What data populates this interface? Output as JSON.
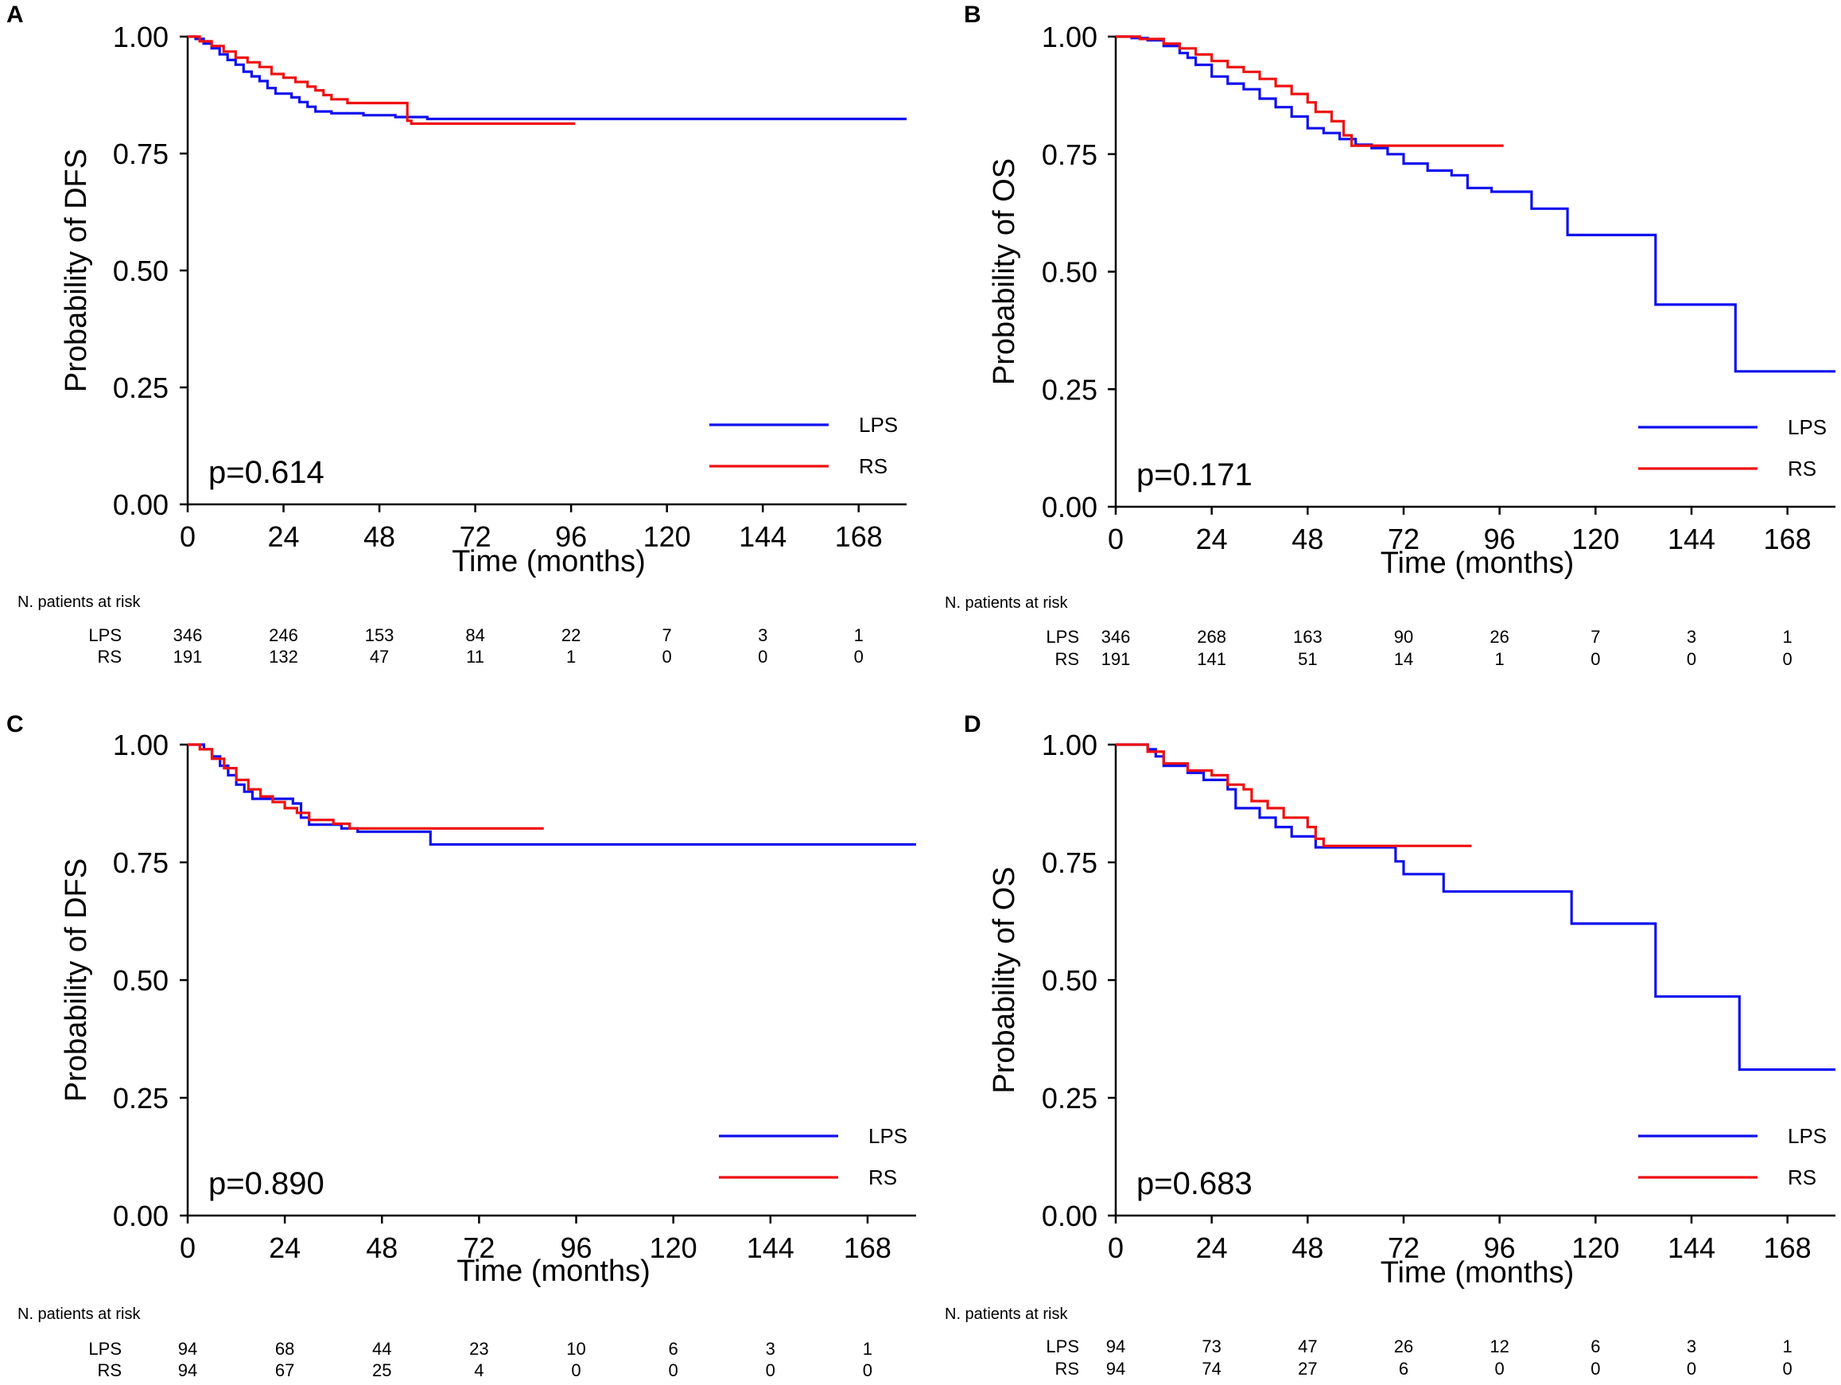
{
  "figure": {
    "colors": {
      "LPS": "#1010ee",
      "RS": "#ee1111",
      "axis": "#000000"
    }
  },
  "chart_data": [
    {
      "panel": "A",
      "type": "line",
      "step": true,
      "ylabel": "Probability of DFS",
      "xlabel": "Time (months)",
      "yticks": [
        "0.00",
        "0.25",
        "0.50",
        "0.75",
        "1.00"
      ],
      "xticks": [
        "0",
        "24",
        "48",
        "72",
        "96",
        "120",
        "144",
        "168"
      ],
      "xlim": [
        0,
        180
      ],
      "ylim": [
        0,
        1
      ],
      "pvalue": "p=0.614",
      "legend": [
        "LPS",
        "RS"
      ],
      "legend_position": "bottom-right",
      "series": [
        {
          "name": "LPS",
          "color": "#1010ee",
          "points": [
            [
              0,
              1.0
            ],
            [
              2,
              0.995
            ],
            [
              4,
              0.985
            ],
            [
              6,
              0.975
            ],
            [
              8,
              0.962
            ],
            [
              10,
              0.95
            ],
            [
              12,
              0.94
            ],
            [
              14,
              0.925
            ],
            [
              16,
              0.915
            ],
            [
              18,
              0.905
            ],
            [
              20,
              0.89
            ],
            [
              22,
              0.878
            ],
            [
              26,
              0.87
            ],
            [
              28,
              0.86
            ],
            [
              30,
              0.85
            ],
            [
              32,
              0.84
            ],
            [
              36,
              0.836
            ],
            [
              44,
              0.832
            ],
            [
              52,
              0.828
            ],
            [
              60,
              0.824
            ],
            [
              180,
              0.824
            ]
          ]
        },
        {
          "name": "RS",
          "color": "#ee1111",
          "points": [
            [
              0,
              1.0
            ],
            [
              3,
              0.99
            ],
            [
              6,
              0.98
            ],
            [
              9,
              0.968
            ],
            [
              12,
              0.955
            ],
            [
              15,
              0.945
            ],
            [
              18,
              0.935
            ],
            [
              21,
              0.92
            ],
            [
              24,
              0.912
            ],
            [
              27,
              0.903
            ],
            [
              30,
              0.893
            ],
            [
              32,
              0.885
            ],
            [
              34,
              0.875
            ],
            [
              36,
              0.866
            ],
            [
              40,
              0.858
            ],
            [
              46,
              0.858
            ],
            [
              52,
              0.858
            ],
            [
              55,
              0.82
            ],
            [
              56,
              0.814
            ],
            [
              97,
              0.814
            ]
          ]
        }
      ],
      "risk_table": {
        "title": "N. patients at risk",
        "rows": [
          {
            "label": "LPS",
            "values": [
              "346",
              "246",
              "153",
              "84",
              "22",
              "7",
              "3",
              "1"
            ]
          },
          {
            "label": "RS",
            "values": [
              "191",
              "132",
              "47",
              "11",
              "1",
              "0",
              "0",
              "0"
            ]
          }
        ]
      }
    },
    {
      "panel": "B",
      "type": "line",
      "step": true,
      "ylabel": "Probability of OS",
      "xlabel": "Time (months)",
      "yticks": [
        "0.00",
        "0.25",
        "0.50",
        "0.75",
        "1.00"
      ],
      "xticks": [
        "0",
        "24",
        "48",
        "72",
        "96",
        "120",
        "144",
        "168"
      ],
      "xlim": [
        0,
        180
      ],
      "ylim": [
        0,
        1
      ],
      "pvalue": "p=0.171",
      "legend": [
        "LPS",
        "RS"
      ],
      "legend_position": "bottom-right",
      "series": [
        {
          "name": "LPS",
          "color": "#1010ee",
          "points": [
            [
              0,
              1.0
            ],
            [
              4,
              0.997
            ],
            [
              8,
              0.992
            ],
            [
              12,
              0.98
            ],
            [
              16,
              0.965
            ],
            [
              18,
              0.955
            ],
            [
              20,
              0.94
            ],
            [
              24,
              0.915
            ],
            [
              28,
              0.9
            ],
            [
              32,
              0.888
            ],
            [
              36,
              0.868
            ],
            [
              40,
              0.85
            ],
            [
              44,
              0.83
            ],
            [
              48,
              0.805
            ],
            [
              52,
              0.795
            ],
            [
              56,
              0.782
            ],
            [
              60,
              0.77
            ],
            [
              64,
              0.763
            ],
            [
              68,
              0.75
            ],
            [
              72,
              0.73
            ],
            [
              78,
              0.715
            ],
            [
              84,
              0.705
            ],
            [
              88,
              0.678
            ],
            [
              94,
              0.67
            ],
            [
              104,
              0.634
            ],
            [
              113,
              0.578
            ],
            [
              135,
              0.43
            ],
            [
              155,
              0.288
            ],
            [
              180,
              0.288
            ]
          ]
        },
        {
          "name": "RS",
          "color": "#ee1111",
          "points": [
            [
              0,
              1.0
            ],
            [
              6,
              0.995
            ],
            [
              12,
              0.985
            ],
            [
              16,
              0.975
            ],
            [
              20,
              0.962
            ],
            [
              24,
              0.948
            ],
            [
              28,
              0.935
            ],
            [
              32,
              0.925
            ],
            [
              36,
              0.91
            ],
            [
              40,
              0.895
            ],
            [
              44,
              0.878
            ],
            [
              48,
              0.86
            ],
            [
              50,
              0.84
            ],
            [
              54,
              0.82
            ],
            [
              57,
              0.79
            ],
            [
              59,
              0.768
            ],
            [
              97,
              0.768
            ]
          ]
        }
      ],
      "risk_table": {
        "title": "N. patients at risk",
        "rows": [
          {
            "label": "LPS",
            "values": [
              "346",
              "268",
              "163",
              "90",
              "26",
              "7",
              "3",
              "1"
            ]
          },
          {
            "label": "RS",
            "values": [
              "191",
              "141",
              "51",
              "14",
              "1",
              "0",
              "0",
              "0"
            ]
          }
        ]
      }
    },
    {
      "panel": "C",
      "type": "line",
      "step": true,
      "ylabel": "Probability of DFS",
      "xlabel": "Time (months)",
      "yticks": [
        "0.00",
        "0.25",
        "0.50",
        "0.75",
        "1.00"
      ],
      "xticks": [
        "0",
        "24",
        "48",
        "72",
        "96",
        "120",
        "144",
        "168"
      ],
      "xlim": [
        0,
        180
      ],
      "ylim": [
        0,
        1
      ],
      "pvalue": "p=0.890",
      "legend": [
        "LPS",
        "RS"
      ],
      "legend_position": "bottom-right",
      "series": [
        {
          "name": "LPS",
          "color": "#1010ee",
          "points": [
            [
              0,
              1.0
            ],
            [
              4,
              0.99
            ],
            [
              6,
              0.975
            ],
            [
              8,
              0.955
            ],
            [
              10,
              0.935
            ],
            [
              12,
              0.915
            ],
            [
              14,
              0.9
            ],
            [
              16,
              0.885
            ],
            [
              26,
              0.875
            ],
            [
              28,
              0.845
            ],
            [
              30,
              0.83
            ],
            [
              38,
              0.822
            ],
            [
              42,
              0.815
            ],
            [
              60,
              0.788
            ],
            [
              180,
              0.788
            ]
          ]
        },
        {
          "name": "RS",
          "color": "#ee1111",
          "points": [
            [
              0,
              1.0
            ],
            [
              3,
              0.99
            ],
            [
              6,
              0.97
            ],
            [
              9,
              0.95
            ],
            [
              12,
              0.925
            ],
            [
              15,
              0.905
            ],
            [
              18,
              0.89
            ],
            [
              21,
              0.878
            ],
            [
              24,
              0.865
            ],
            [
              27,
              0.855
            ],
            [
              30,
              0.84
            ],
            [
              36,
              0.832
            ],
            [
              40,
              0.822
            ],
            [
              88,
              0.822
            ]
          ]
        }
      ],
      "risk_table": {
        "title": "N. patients at risk",
        "rows": [
          {
            "label": "LPS",
            "values": [
              "94",
              "68",
              "44",
              "23",
              "10",
              "6",
              "3",
              "1"
            ]
          },
          {
            "label": "RS",
            "values": [
              "94",
              "67",
              "25",
              "4",
              "0",
              "0",
              "0",
              "0"
            ]
          }
        ]
      }
    },
    {
      "panel": "D",
      "type": "line",
      "step": true,
      "ylabel": "Probability of OS",
      "xlabel": "Time (months)",
      "yticks": [
        "0.00",
        "0.25",
        "0.50",
        "0.75",
        "1.00"
      ],
      "xticks": [
        "0",
        "24",
        "48",
        "72",
        "96",
        "120",
        "144",
        "168"
      ],
      "xlim": [
        0,
        180
      ],
      "ylim": [
        0,
        1
      ],
      "pvalue": "p=0.683",
      "legend": [
        "LPS",
        "RS"
      ],
      "legend_position": "bottom-right",
      "series": [
        {
          "name": "LPS",
          "color": "#1010ee",
          "points": [
            [
              0,
              1.0
            ],
            [
              8,
              0.99
            ],
            [
              10,
              0.975
            ],
            [
              12,
              0.955
            ],
            [
              18,
              0.94
            ],
            [
              22,
              0.925
            ],
            [
              28,
              0.905
            ],
            [
              30,
              0.865
            ],
            [
              36,
              0.845
            ],
            [
              40,
              0.825
            ],
            [
              44,
              0.805
            ],
            [
              50,
              0.782
            ],
            [
              70,
              0.752
            ],
            [
              72,
              0.725
            ],
            [
              82,
              0.688
            ],
            [
              114,
              0.62
            ],
            [
              135,
              0.465
            ],
            [
              156,
              0.31
            ],
            [
              180,
              0.31
            ]
          ]
        },
        {
          "name": "RS",
          "color": "#ee1111",
          "points": [
            [
              0,
              1.0
            ],
            [
              8,
              0.985
            ],
            [
              12,
              0.96
            ],
            [
              18,
              0.945
            ],
            [
              24,
              0.935
            ],
            [
              28,
              0.915
            ],
            [
              32,
              0.905
            ],
            [
              34,
              0.88
            ],
            [
              38,
              0.865
            ],
            [
              42,
              0.845
            ],
            [
              46,
              0.845
            ],
            [
              48,
              0.825
            ],
            [
              50,
              0.8
            ],
            [
              52,
              0.785
            ],
            [
              89,
              0.785
            ]
          ]
        }
      ],
      "risk_table": {
        "title": "N. patients at risk",
        "rows": [
          {
            "label": "LPS",
            "values": [
              "94",
              "73",
              "47",
              "26",
              "12",
              "6",
              "3",
              "1"
            ]
          },
          {
            "label": "RS",
            "values": [
              "94",
              "74",
              "27",
              "6",
              "0",
              "0",
              "0",
              "0"
            ]
          }
        ]
      }
    }
  ]
}
